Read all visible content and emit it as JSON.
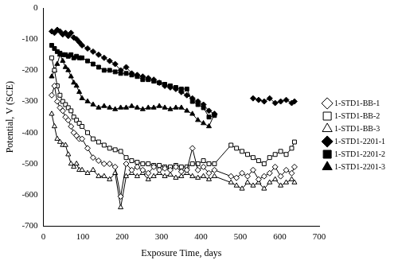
{
  "chart_data": {
    "type": "line",
    "x_label": "Exposure Time, days",
    "y_label": "Potential, V (SCE)",
    "x": [
      21,
      28,
      35,
      42,
      49,
      56,
      63,
      70,
      77,
      84,
      91,
      98,
      112,
      126,
      140,
      154,
      168,
      182,
      196,
      210,
      224,
      238,
      252,
      266,
      280,
      294,
      308,
      322,
      336,
      350,
      364,
      378,
      392,
      406,
      420,
      434,
      476,
      490,
      504,
      518,
      532,
      546,
      560,
      574,
      588,
      602,
      616,
      630,
      637
    ],
    "series": [
      {
        "name": "1-STD1-BB-1",
        "color": "#000000",
        "marker": "diamond-open",
        "line_style": "solid",
        "values": [
          -280,
          -250,
          -300,
          -320,
          -330,
          -350,
          -360,
          -380,
          -400,
          -410,
          -420,
          -420,
          -450,
          -480,
          -490,
          -500,
          -500,
          -510,
          -605,
          -500,
          -520,
          -510,
          -520,
          -530,
          -510,
          -520,
          -515,
          -520,
          -510,
          -525,
          -520,
          -450,
          -520,
          -510,
          -530,
          -520,
          -540,
          -545,
          -530,
          -540,
          -520,
          -550,
          -540,
          -530,
          -510,
          -540,
          -520,
          -530,
          -510
        ]
      },
      {
        "name": "1-STD1-BB-2",
        "color": "#000000",
        "marker": "square-open",
        "line_style": "solid",
        "values": [
          -160,
          -200,
          -250,
          -280,
          -300,
          -310,
          -320,
          -330,
          -350,
          -360,
          -370,
          -380,
          -400,
          -420,
          -430,
          -440,
          -450,
          -455,
          -460,
          -480,
          -490,
          -495,
          -500,
          -500,
          -505,
          -505,
          -510,
          -510,
          -505,
          -510,
          -510,
          -500,
          -500,
          -490,
          -500,
          -500,
          -440,
          -450,
          -460,
          -470,
          -480,
          -490,
          -500,
          -480,
          -470,
          -460,
          -470,
          -450,
          -430
        ]
      },
      {
        "name": "1-STD1-BB-3",
        "color": "#000000",
        "marker": "triangle-open",
        "line_style": "solid",
        "values": [
          -340,
          -380,
          -420,
          -430,
          -440,
          -440,
          -470,
          -500,
          -510,
          -500,
          -520,
          -520,
          -530,
          -520,
          -540,
          -540,
          -550,
          -530,
          -640,
          -540,
          -530,
          -540,
          -530,
          -550,
          -540,
          -530,
          -540,
          -535,
          -545,
          -540,
          -530,
          -540,
          -545,
          -540,
          -550,
          -540,
          -560,
          -570,
          -580,
          -560,
          -570,
          -560,
          -580,
          -560,
          -550,
          -570,
          -560,
          -550,
          -560
        ]
      },
      {
        "name": "1-STD1-2201-1",
        "color": "#000000",
        "marker": "diamond",
        "line_style": "solid",
        "values": [
          -75,
          -80,
          -70,
          -75,
          -85,
          -80,
          -90,
          -80,
          -95,
          -100,
          -110,
          -120,
          -130,
          -140,
          -150,
          -160,
          -170,
          -180,
          -200,
          -190,
          -210,
          -215,
          -220,
          -225,
          -230,
          -240,
          -250,
          -255,
          -260,
          -270,
          -280,
          -290,
          -300,
          -310,
          -330,
          -340,
          null,
          null,
          null,
          null,
          -290,
          -295,
          -300,
          -290,
          -305,
          -300,
          -295,
          -305,
          -300
        ]
      },
      {
        "name": "1-STD1-2201-2",
        "color": "#000000",
        "marker": "square",
        "line_style": "solid",
        "values": [
          -120,
          -130,
          -140,
          -145,
          -150,
          -150,
          -155,
          -150,
          -160,
          -155,
          -160,
          -160,
          -170,
          -180,
          -190,
          -200,
          -200,
          -205,
          -210,
          -210,
          -215,
          -220,
          -230,
          -230,
          -235,
          -240,
          -245,
          -250,
          -255,
          -260,
          -260,
          -300,
          -310,
          -320,
          -350,
          -345,
          null,
          null,
          null,
          null,
          null,
          null,
          null,
          null,
          null,
          null,
          null,
          null,
          null
        ]
      },
      {
        "name": "1-STD1-2201-3",
        "color": "#000000",
        "marker": "triangle",
        "line_style": "solid",
        "values": [
          -220,
          -200,
          -180,
          -150,
          -170,
          -190,
          -200,
          -220,
          -240,
          -250,
          -270,
          -290,
          -300,
          -310,
          -320,
          -315,
          -320,
          -325,
          -320,
          -320,
          -315,
          -320,
          -325,
          -320,
          -320,
          -315,
          -320,
          -325,
          -320,
          -320,
          -330,
          -340,
          -360,
          -370,
          -380,
          -340,
          null,
          null,
          null,
          null,
          null,
          null,
          null,
          null,
          null,
          null,
          null,
          null,
          null
        ]
      }
    ],
    "xlim": [
      0,
      700
    ],
    "xticks": [
      0,
      100,
      200,
      300,
      400,
      500,
      600,
      700
    ],
    "ylim": [
      -700,
      0
    ],
    "yticks": [
      -700,
      -600,
      -500,
      -400,
      -300,
      -200,
      -100,
      0
    ],
    "grid": false,
    "legend": "right"
  }
}
